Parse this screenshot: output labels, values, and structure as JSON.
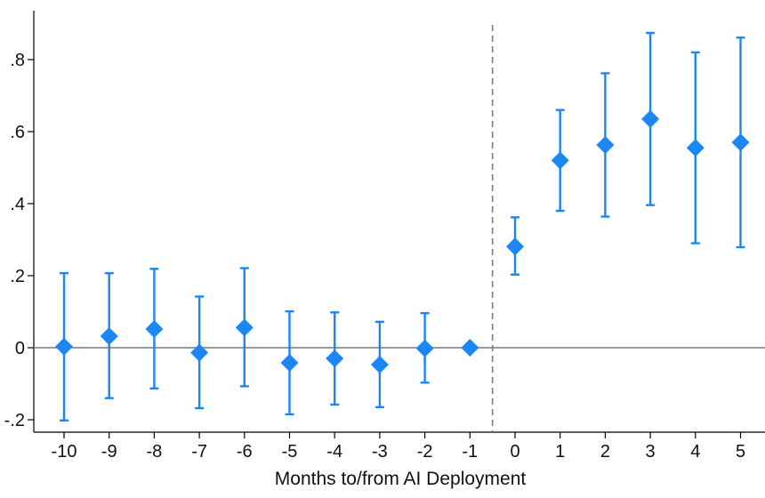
{
  "chart_data": {
    "type": "scatter",
    "subtype": "event-study coefficient plot with confidence intervals",
    "title": "",
    "xlabel": "Months to/from AI Deployment",
    "ylabel": "",
    "x_ticks": [
      "-10",
      "-9",
      "-8",
      "-7",
      "-6",
      "-5",
      "-4",
      "-3",
      "-2",
      "-1",
      "0",
      "1",
      "2",
      "3",
      "4",
      "5"
    ],
    "y_ticks": [
      {
        "value": -0.2,
        "label": "-.2"
      },
      {
        "value": 0,
        "label": "0"
      },
      {
        "value": 0.2,
        "label": ".2"
      },
      {
        "value": 0.4,
        "label": ".4"
      },
      {
        "value": 0.6,
        "label": ".6"
      },
      {
        "value": 0.8,
        "label": ".8"
      }
    ],
    "ylim": [
      -0.24,
      0.9
    ],
    "xlim": [
      -10.5,
      5.5
    ],
    "reference_line_y": 0,
    "event_line_x": -0.5,
    "marker": "diamond",
    "color": "#1a87f5",
    "points": [
      {
        "x": -10,
        "y": 0.003,
        "lo": -0.202,
        "hi": 0.207
      },
      {
        "x": -9,
        "y": 0.032,
        "lo": -0.14,
        "hi": 0.207
      },
      {
        "x": -8,
        "y": 0.052,
        "lo": -0.113,
        "hi": 0.219
      },
      {
        "x": -7,
        "y": -0.014,
        "lo": -0.168,
        "hi": 0.142
      },
      {
        "x": -6,
        "y": 0.056,
        "lo": -0.107,
        "hi": 0.221
      },
      {
        "x": -5,
        "y": -0.042,
        "lo": -0.185,
        "hi": 0.101
      },
      {
        "x": -4,
        "y": -0.03,
        "lo": -0.158,
        "hi": 0.098
      },
      {
        "x": -3,
        "y": -0.047,
        "lo": -0.165,
        "hi": 0.072
      },
      {
        "x": -2,
        "y": -0.002,
        "lo": -0.097,
        "hi": 0.096
      },
      {
        "x": -1,
        "y": 0.0,
        "lo": 0.0,
        "hi": 0.0
      },
      {
        "x": 0,
        "y": 0.281,
        "lo": 0.203,
        "hi": 0.362
      },
      {
        "x": 1,
        "y": 0.52,
        "lo": 0.38,
        "hi": 0.66
      },
      {
        "x": 2,
        "y": 0.563,
        "lo": 0.364,
        "hi": 0.762
      },
      {
        "x": 3,
        "y": 0.635,
        "lo": 0.396,
        "hi": 0.874
      },
      {
        "x": 4,
        "y": 0.555,
        "lo": 0.29,
        "hi": 0.82
      },
      {
        "x": 5,
        "y": 0.57,
        "lo": 0.279,
        "hi": 0.861
      }
    ]
  }
}
